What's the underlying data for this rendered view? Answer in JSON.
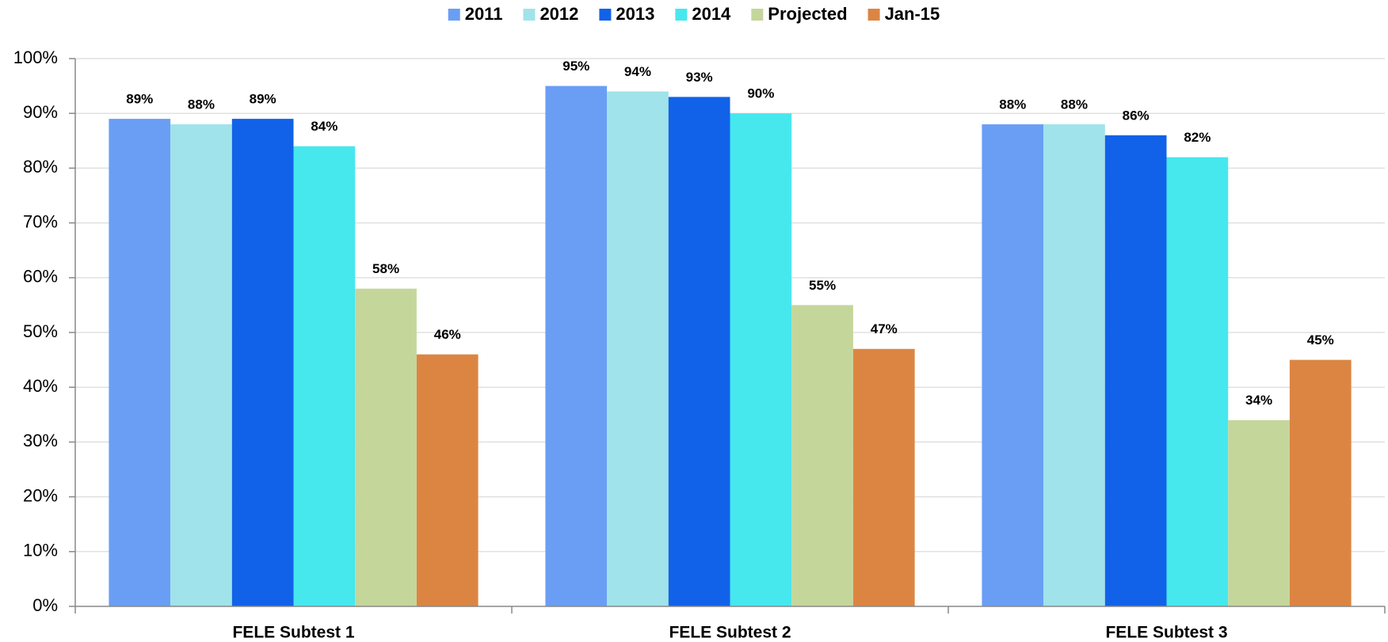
{
  "chart_data": {
    "type": "bar",
    "categories": [
      "FELE Subtest 1",
      "FELE Subtest 2",
      "FELE Subtest 3"
    ],
    "series": [
      {
        "name": "2011",
        "color": "#6a9ef5",
        "values": [
          89,
          95,
          88
        ],
        "value_labels": [
          "89%",
          "95%",
          "88%"
        ]
      },
      {
        "name": "2012",
        "color": "#a0e3ea",
        "values": [
          88,
          94,
          88
        ],
        "value_labels": [
          "88%",
          "94%",
          "88%"
        ]
      },
      {
        "name": "2013",
        "color": "#1162e8",
        "values": [
          89,
          93,
          86
        ],
        "value_labels": [
          "89%",
          "93%",
          "86%"
        ]
      },
      {
        "name": "2014",
        "color": "#46e8ee",
        "values": [
          84,
          90,
          82
        ],
        "value_labels": [
          "84%",
          "90%",
          "82%"
        ]
      },
      {
        "name": "Projected",
        "color": "#c5d69b",
        "values": [
          58,
          55,
          34
        ],
        "value_labels": [
          "58%",
          "55%",
          "34%"
        ]
      },
      {
        "name": "Jan-15",
        "color": "#dc8542",
        "values": [
          46,
          47,
          45
        ],
        "value_labels": [
          "46%",
          "47%",
          "45%"
        ]
      }
    ],
    "ylim": [
      0,
      100
    ],
    "yticks": [
      {
        "value": 0,
        "label": "0%"
      },
      {
        "value": 10,
        "label": "10%"
      },
      {
        "value": 20,
        "label": "20%"
      },
      {
        "value": 30,
        "label": "30%"
      },
      {
        "value": 40,
        "label": "40%"
      },
      {
        "value": 50,
        "label": "50%"
      },
      {
        "value": 60,
        "label": "60%"
      },
      {
        "value": 70,
        "label": "70%"
      },
      {
        "value": 80,
        "label": "80%"
      },
      {
        "value": 90,
        "label": "90%"
      },
      {
        "value": 100,
        "label": "100%"
      }
    ],
    "grid": true,
    "legend": "top"
  }
}
